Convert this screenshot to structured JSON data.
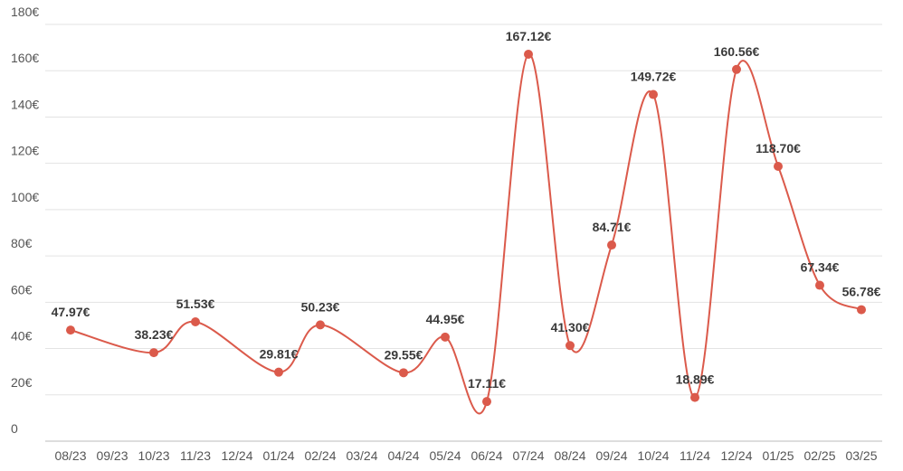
{
  "chart_data": {
    "type": "line",
    "categories": [
      "08/23",
      "09/23",
      "10/23",
      "11/23",
      "12/24",
      "01/24",
      "02/24",
      "03/24",
      "04/24",
      "05/24",
      "06/24",
      "07/24",
      "08/24",
      "09/24",
      "10/24",
      "11/24",
      "12/24",
      "01/25",
      "02/25",
      "03/25"
    ],
    "series": [
      {
        "color": "#db5a4b",
        "values": [
          47.97,
          null,
          38.23,
          51.53,
          null,
          29.81,
          50.23,
          null,
          29.55,
          44.95,
          17.11,
          167.12,
          41.3,
          84.71,
          149.72,
          18.89,
          160.56,
          118.7,
          67.34,
          56.78
        ],
        "value_labels": [
          "47.97€",
          null,
          "38.23€",
          "51.53€",
          null,
          "29.81€",
          "50.23€",
          null,
          "29.55€",
          "44.95€",
          "17.11€",
          "167.12€",
          "41.30€",
          "84.71€",
          "149.72€",
          "18.89€",
          "160.56€",
          "118.70€",
          "67.34€",
          "56.78€"
        ]
      }
    ],
    "span_gaps": true,
    "smooth": true,
    "ylim": [
      0,
      180
    ],
    "yticks": [
      0,
      {
        "value": 20,
        "label": "20€"
      },
      {
        "value": 40,
        "label": "40€"
      },
      {
        "value": 60,
        "label": "60€"
      },
      {
        "value": 80,
        "label": "80€"
      },
      {
        "value": 100,
        "label": "100€"
      },
      {
        "value": 120,
        "label": "120€"
      },
      {
        "value": 140,
        "label": "140€"
      },
      {
        "value": 160,
        "label": "160€"
      },
      {
        "value": 180,
        "label": "180€"
      }
    ],
    "grid": true
  }
}
